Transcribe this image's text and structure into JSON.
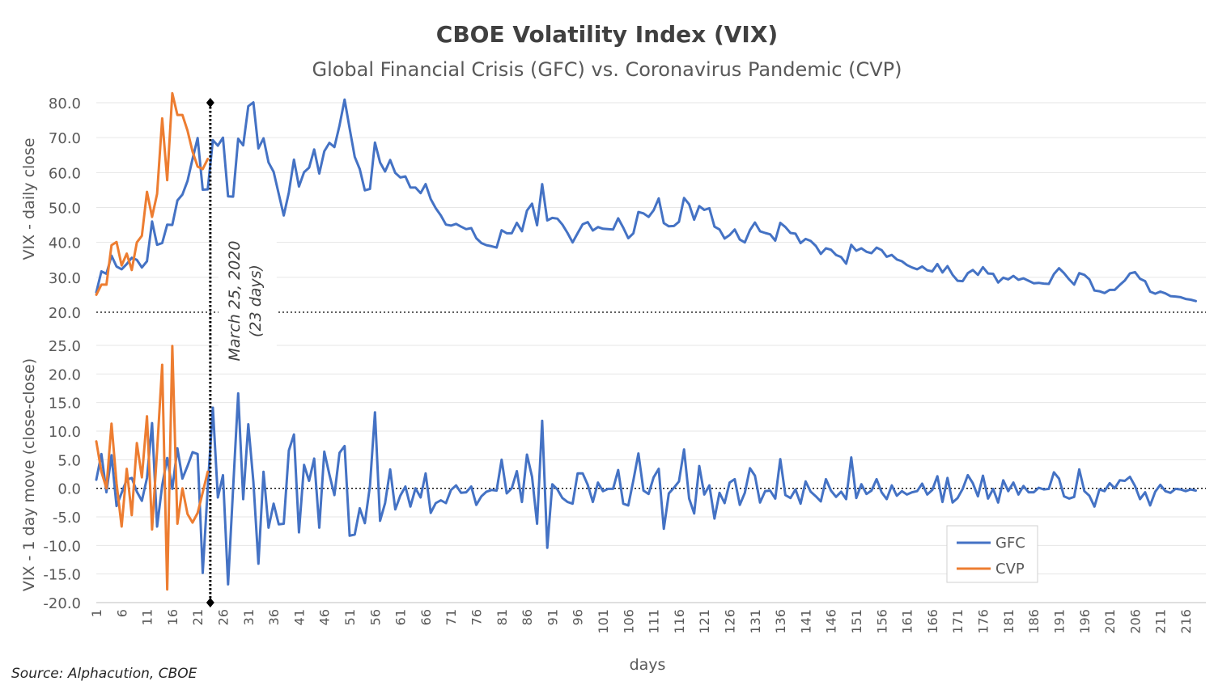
{
  "chart_data": {
    "type": "line",
    "title": "CBOE Volatility Index (VIX)",
    "subtitle": "Global Financial Crisis (GFC) vs. Coronavirus Pandemic (CVP)",
    "xlabel": "days",
    "source": "Source: Alphacution, CBOE",
    "x_tick_labels": [
      "1",
      "6",
      "11",
      "16",
      "21",
      "26",
      "31",
      "36",
      "41",
      "46",
      "51",
      "56",
      "61",
      "66",
      "71",
      "76",
      "81",
      "86",
      "91",
      "96",
      "101",
      "106",
      "111",
      "116",
      "121",
      "126",
      "131",
      "136",
      "141",
      "146",
      "151",
      "156",
      "161",
      "166",
      "171",
      "176",
      "181",
      "186",
      "191",
      "196",
      "201",
      "206",
      "211",
      "216"
    ],
    "x_range": [
      1,
      220
    ],
    "annotation": {
      "line1": "March 25, 2020",
      "line2": "(23 days)",
      "day": 23.5
    },
    "colors": {
      "GFC": "#4472C4",
      "CVP": "#ED7D31"
    },
    "legend": [
      "GFC",
      "CVP"
    ],
    "panels": [
      {
        "name": "daily_close",
        "ylabel": "VIX - daily close",
        "ylim": [
          20,
          80
        ],
        "yticks": [
          "80.0",
          "70.0",
          "60.0",
          "50.0",
          "40.0",
          "30.0",
          "20.0"
        ],
        "series": [
          {
            "name": "GFC",
            "values": [
              25.7,
              31.7,
              31.0,
              36.2,
              33.1,
              32.3,
              33.8,
              35.6,
              35.0,
              32.8,
              34.6,
              46.0,
              39.3,
              39.8,
              45.1,
              45.0,
              52.0,
              53.7,
              57.6,
              63.9,
              69.9,
              55.1,
              55.2,
              69.3,
              67.7,
              70.0,
              53.2,
              53.1,
              69.7,
              67.8,
              79.0,
              80.1,
              66.9,
              69.8,
              62.9,
              60.2,
              53.9,
              47.7,
              54.3,
              63.7,
              56.0,
              60.1,
              61.4,
              66.6,
              59.7,
              66.1,
              68.5,
              67.3,
              73.5,
              80.9,
              72.6,
              64.5,
              61.0,
              54.9,
              55.3,
              68.6,
              62.9,
              60.3,
              63.6,
              59.9,
              58.6,
              58.9,
              55.7,
              55.7,
              54.1,
              56.7,
              52.4,
              49.8,
              47.7,
              45.1,
              44.8,
              45.3,
              44.5,
              43.8,
              44.1,
              41.2,
              39.8,
              39.2,
              38.9,
              38.5,
              43.5,
              42.6,
              42.6,
              45.6,
              43.2,
              49.1,
              51.1,
              44.9,
              56.7,
              46.3,
              47.0,
              46.8,
              45.1,
              42.7,
              40.0,
              42.6,
              45.2,
              45.8,
              43.4,
              44.4,
              43.9,
              43.8,
              43.7,
              46.9,
              44.2,
              41.2,
              42.6,
              48.7,
              48.3,
              47.3,
              49.2,
              52.6,
              45.5,
              44.6,
              44.7,
              45.9,
              52.7,
              50.9,
              46.5,
              50.4,
              49.3,
              49.8,
              44.5,
              43.7,
              41.1,
              42.1,
              43.7,
              40.8,
              40.0,
              43.5,
              45.7,
              43.2,
              42.7,
              42.3,
              40.5,
              45.6,
              44.4,
              42.7,
              42.5,
              39.8,
              41.0,
              40.4,
              39.0,
              36.7,
              38.3,
              37.9,
              36.4,
              35.8,
              33.9,
              39.3,
              37.6,
              38.3,
              37.3,
              36.9,
              38.5,
              37.8,
              35.9,
              36.4,
              35.1,
              34.6,
              33.5,
              32.8,
              32.3,
              33.1,
              32.0,
              31.7,
              33.8,
              31.4,
              33.2,
              30.7,
              29.0,
              28.9,
              31.2,
              32.1,
              30.7,
              32.9,
              31.1,
              31.0,
              28.5,
              29.9,
              29.4,
              30.4,
              29.3,
              29.7,
              29.0,
              28.3,
              28.4,
              28.2,
              28.1,
              30.9,
              32.6,
              31.2,
              29.4,
              27.9,
              31.2,
              30.7,
              29.4,
              26.2,
              26.0,
              25.5,
              26.4,
              26.4,
              27.8,
              29.1,
              31.1,
              31.5,
              29.6,
              28.9,
              25.9,
              25.3,
              25.9,
              25.4,
              24.6,
              24.5,
              24.3,
              23.8,
              23.6,
              23.2
            ]
          },
          {
            "name": "CVP",
            "values": [
              25.0,
              27.9,
              27.9,
              39.2,
              40.1,
              33.4,
              36.8,
              32.1,
              40.0,
              41.9,
              54.5,
              47.3,
              53.9,
              75.5,
              57.8,
              82.7,
              76.5,
              76.5,
              72.0,
              66.0,
              61.7,
              61.0,
              63.9
            ]
          }
        ]
      },
      {
        "name": "one_day_move",
        "ylabel": "VIX - 1 day move (close-close)",
        "ylim": [
          -20,
          25
        ],
        "yticks": [
          "25.0",
          "20.0",
          "15.0",
          "10.0",
          "5.0",
          "0.0",
          "-5.0",
          "-10.0",
          "-15.0",
          "-20.0"
        ],
        "series": [
          {
            "name": "GFC",
            "values": [
              1.5,
              6.0,
              -0.7,
              5.8,
              -3.1,
              -0.8,
              1.5,
              1.8,
              -0.6,
              -2.2,
              1.8,
              11.4,
              -6.7,
              0.5,
              5.3,
              -0.1,
              7.0,
              1.7,
              3.9,
              6.3,
              6.0,
              -14.8,
              0.1,
              14.1,
              -1.6,
              2.3,
              -16.8,
              -0.1,
              16.6,
              -1.9,
              11.2,
              1.1,
              -13.2,
              2.9,
              -6.9,
              -2.7,
              -6.3,
              -6.2,
              6.6,
              9.4,
              -7.7,
              4.1,
              1.3,
              5.2,
              -6.9,
              6.4,
              2.4,
              -1.2,
              6.2,
              7.4,
              -8.3,
              -8.1,
              -3.5,
              -6.1,
              0.4,
              13.3,
              -5.7,
              -2.6,
              3.3,
              -3.7,
              -1.3,
              0.3,
              -3.2,
              0.0,
              -1.6,
              2.6,
              -4.3,
              -2.6,
              -2.1,
              -2.6,
              -0.3,
              0.5,
              -0.8,
              -0.7,
              0.3,
              -2.9,
              -1.4,
              -0.6,
              -0.3,
              -0.4,
              5.0,
              -0.9,
              0.0,
              3.0,
              -2.4,
              5.9,
              2.0,
              -6.2,
              11.8,
              -10.4,
              0.7,
              -0.2,
              -1.7,
              -2.4,
              -2.7,
              2.6,
              2.6,
              0.6,
              -2.4,
              1.0,
              -0.5,
              -0.1,
              -0.1,
              3.2,
              -2.7,
              -3.0,
              1.4,
              6.1,
              -0.4,
              -1.0,
              1.9,
              3.4,
              -7.1,
              -0.9,
              0.1,
              1.2,
              6.8,
              -1.8,
              -4.4,
              3.9,
              -1.1,
              0.5,
              -5.3,
              -0.8,
              -2.6,
              1.0,
              1.6,
              -2.9,
              -0.8,
              3.5,
              2.2,
              -2.5,
              -0.5,
              -0.4,
              -1.8,
              5.1,
              -1.2,
              -1.7,
              -0.2,
              -2.7,
              1.2,
              -0.6,
              -1.4,
              -2.3,
              1.6,
              -0.4,
              -1.5,
              -0.6,
              -1.9,
              5.4,
              -1.7,
              0.7,
              -1.0,
              -0.4,
              1.6,
              -0.7,
              -1.9,
              0.5,
              -1.3,
              -0.5,
              -1.1,
              -0.7,
              -0.5,
              0.8,
              -1.1,
              -0.3,
              2.1,
              -2.4,
              1.8,
              -2.5,
              -1.7,
              -0.1,
              2.3,
              0.9,
              -1.4,
              2.2,
              -1.8,
              -0.1,
              -2.5,
              1.4,
              -0.5,
              1.0,
              -1.1,
              0.4,
              -0.7,
              -0.7,
              0.1,
              -0.2,
              -0.1,
              2.8,
              1.7,
              -1.4,
              -1.8,
              -1.5,
              3.3,
              -0.5,
              -1.3,
              -3.2,
              -0.2,
              -0.5,
              0.9,
              0.0,
              1.4,
              1.3,
              2.0,
              0.4,
              -1.9,
              -0.7,
              -3.0,
              -0.6,
              0.6,
              -0.5,
              -0.8,
              -0.1,
              -0.2,
              -0.5,
              -0.2,
              -0.4
            ]
          },
          {
            "name": "CVP",
            "values": [
              8.2,
              2.9,
              0.0,
              11.3,
              0.9,
              -6.7,
              3.4,
              -4.7,
              7.9,
              1.9,
              12.6,
              -7.2,
              6.6,
              21.6,
              -17.7,
              24.9,
              -6.2,
              0.0,
              -4.5,
              -6.0,
              -4.3,
              -0.7,
              2.9
            ]
          }
        ]
      }
    ]
  }
}
